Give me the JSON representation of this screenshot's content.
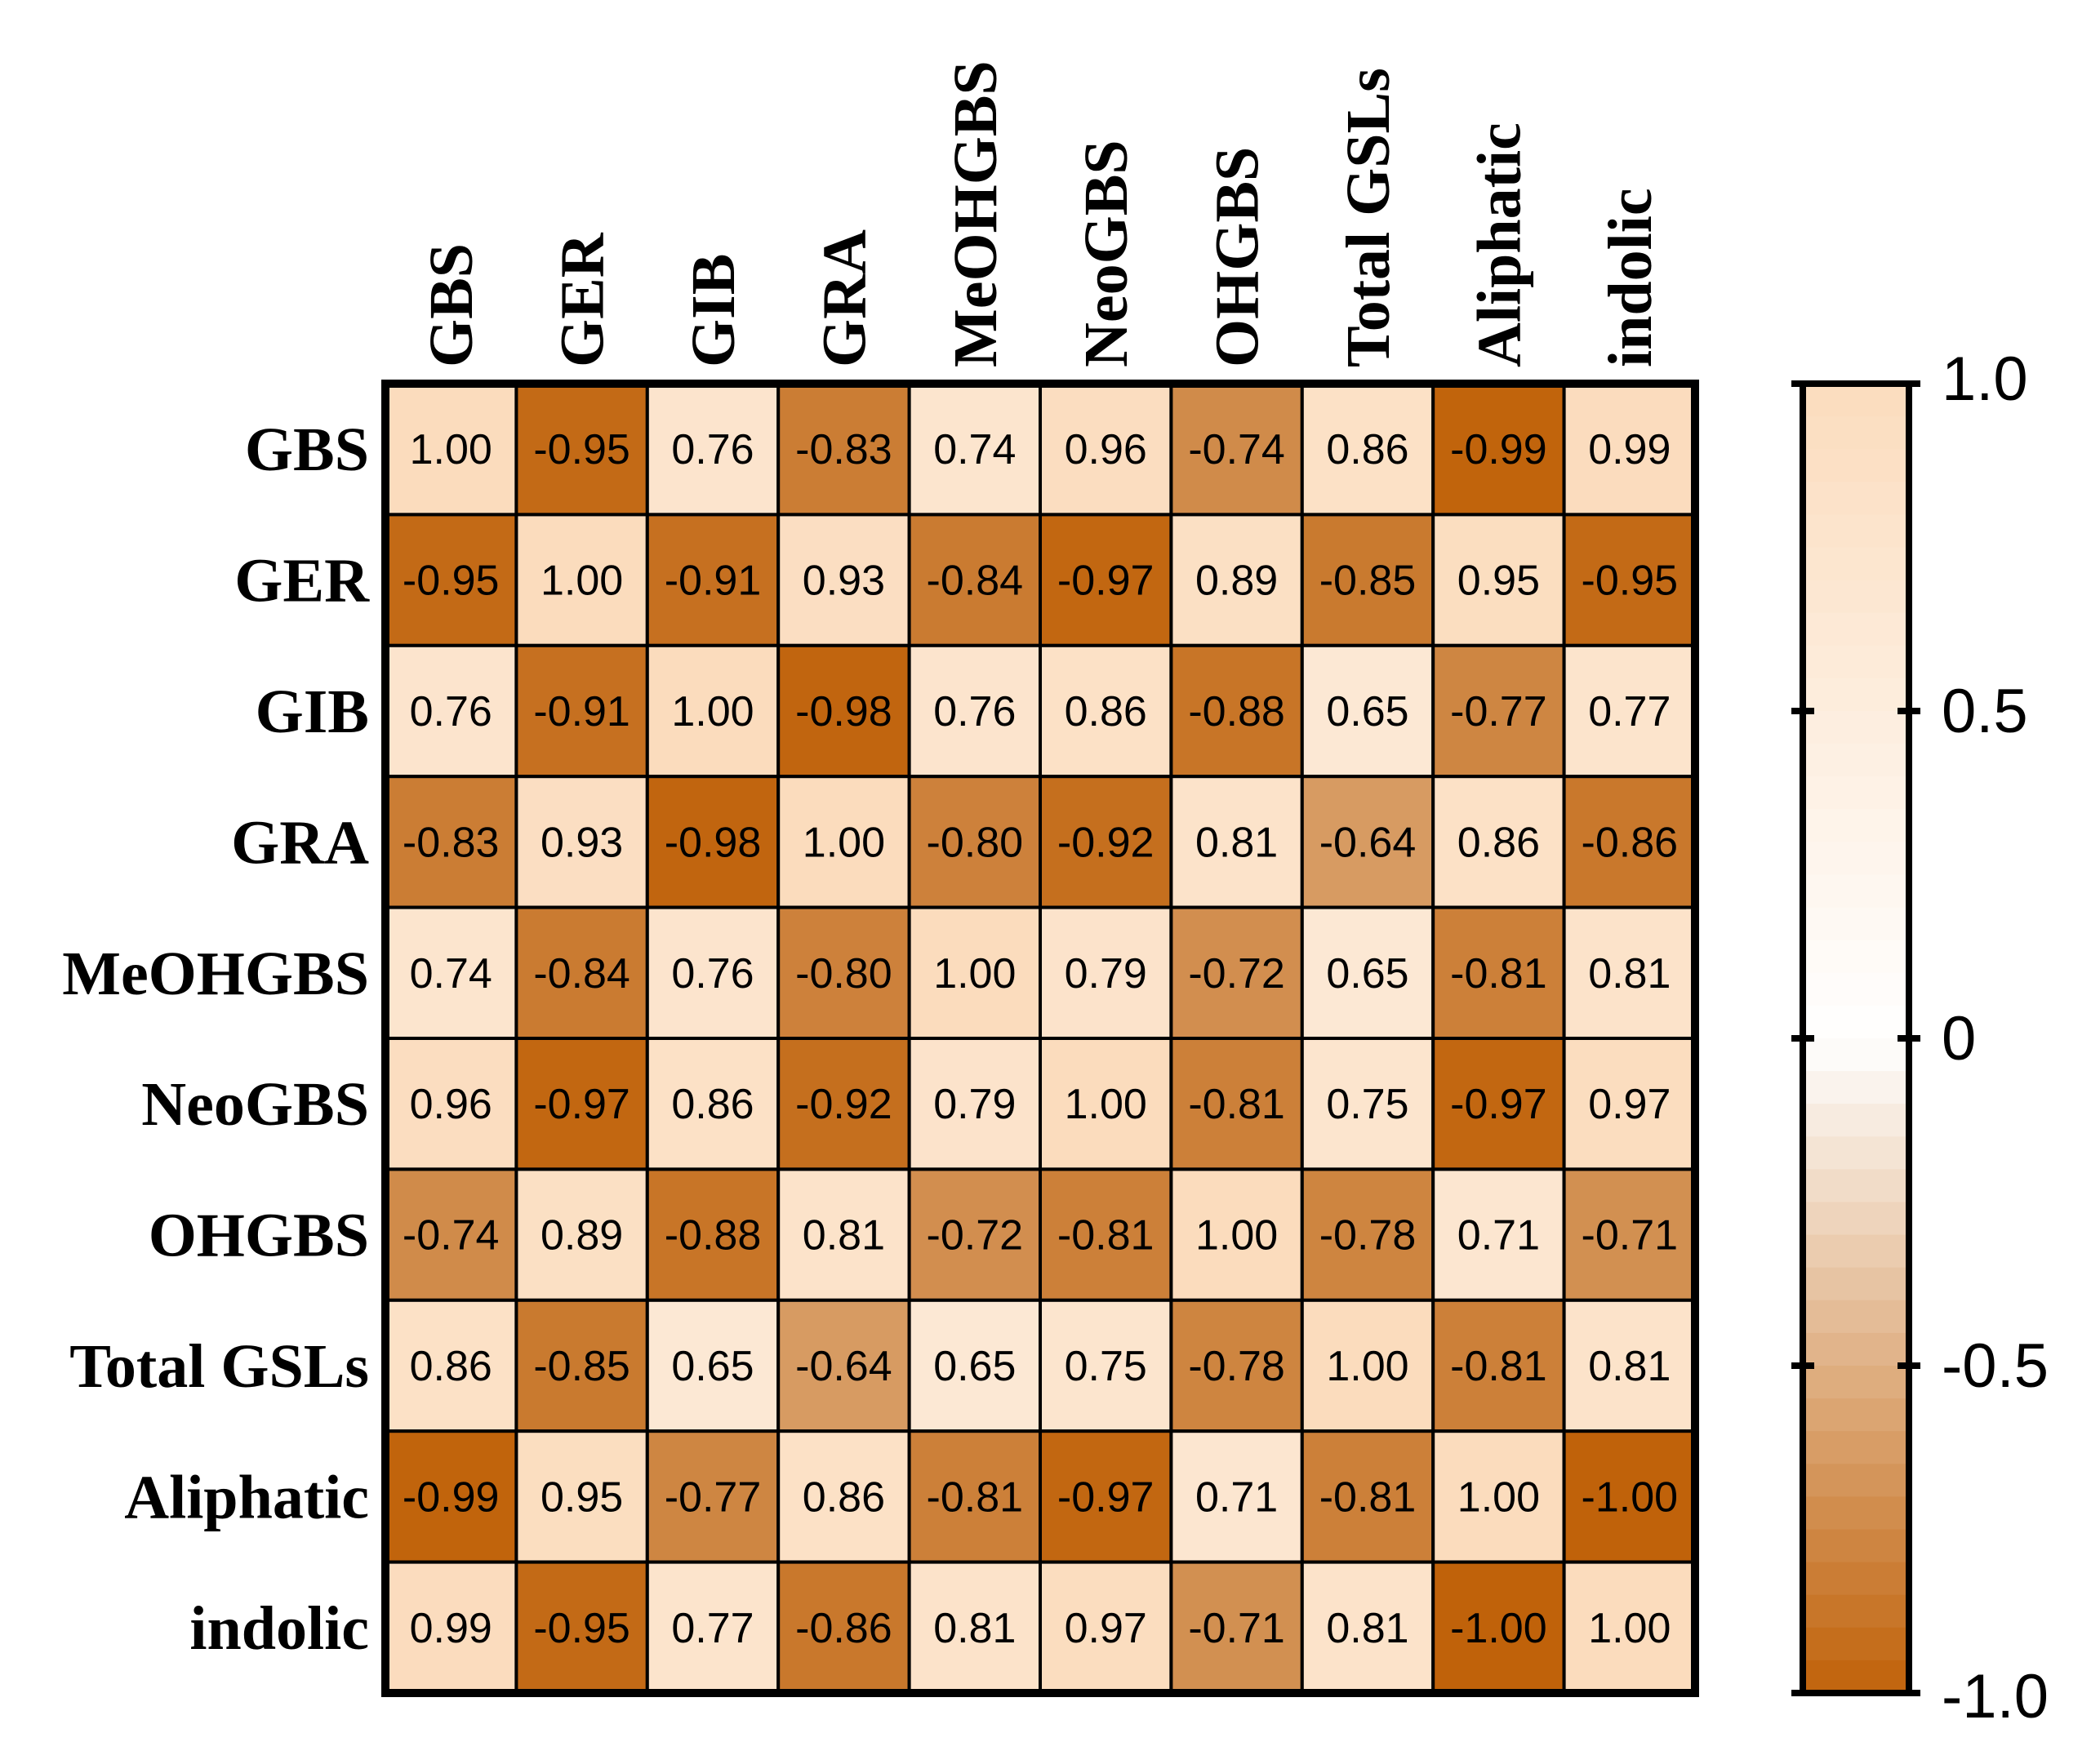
{
  "chart_data": {
    "type": "heatmap",
    "title": "",
    "xlabel": "",
    "ylabel": "",
    "rows": [
      "GBS",
      "GER",
      "GIB",
      "GRA",
      "MeOHGBS",
      "NeoGBS",
      "OHGBS",
      "Total GSLs",
      "Aliphatic",
      "indolic"
    ],
    "columns": [
      "GBS",
      "GER",
      "GIB",
      "GRA",
      "MeOHGBS",
      "NeoGBS",
      "OHGBS",
      "Total GSLs",
      "Aliphatic",
      "indolic"
    ],
    "values": [
      [
        1.0,
        -0.95,
        0.76,
        -0.83,
        0.74,
        0.96,
        -0.74,
        0.86,
        -0.99,
        0.99
      ],
      [
        -0.95,
        1.0,
        -0.91,
        0.93,
        -0.84,
        -0.97,
        0.89,
        -0.85,
        0.95,
        -0.95
      ],
      [
        0.76,
        -0.91,
        1.0,
        -0.98,
        0.76,
        0.86,
        -0.88,
        0.65,
        -0.77,
        0.77
      ],
      [
        -0.83,
        0.93,
        -0.98,
        1.0,
        -0.8,
        -0.92,
        0.81,
        -0.64,
        0.86,
        -0.86
      ],
      [
        0.74,
        -0.84,
        0.76,
        -0.8,
        1.0,
        0.79,
        -0.72,
        0.65,
        -0.81,
        0.81
      ],
      [
        0.96,
        -0.97,
        0.86,
        -0.92,
        0.79,
        1.0,
        -0.81,
        0.75,
        -0.97,
        0.97
      ],
      [
        -0.74,
        0.89,
        -0.88,
        0.81,
        -0.72,
        -0.81,
        1.0,
        -0.78,
        0.71,
        -0.71
      ],
      [
        0.86,
        -0.85,
        0.65,
        -0.64,
        0.65,
        0.75,
        -0.78,
        1.0,
        -0.81,
        0.81
      ],
      [
        -0.99,
        0.95,
        -0.77,
        0.86,
        -0.81,
        -0.97,
        0.71,
        -0.81,
        1.0,
        -1.0
      ],
      [
        0.99,
        -0.95,
        0.77,
        -0.86,
        0.81,
        0.97,
        -0.71,
        0.81,
        -1.0,
        1.0
      ]
    ],
    "value_labels": [
      [
        "1.00",
        "-0.95",
        "0.76",
        "-0.83",
        "0.74",
        "0.96",
        "-0.74",
        "0.86",
        "-0.99",
        "0.99"
      ],
      [
        "-0.95",
        "1.00",
        "-0.91",
        "0.93",
        "-0.84",
        "-0.97",
        "0.89",
        "-0.85",
        "0.95",
        "-0.95"
      ],
      [
        "0.76",
        "-0.91",
        "1.00",
        "-0.98",
        "0.76",
        "0.86",
        "-0.88",
        "0.65",
        "-0.77",
        "0.77"
      ],
      [
        "-0.83",
        "0.93",
        "-0.98",
        "1.00",
        "-0.80",
        "-0.92",
        "0.81",
        "-0.64",
        "0.86",
        "-0.86"
      ],
      [
        "0.74",
        "-0.84",
        "0.76",
        "-0.80",
        "1.00",
        "0.79",
        "-0.72",
        "0.65",
        "-0.81",
        "0.81"
      ],
      [
        "0.96",
        "-0.97",
        "0.86",
        "-0.92",
        "0.79",
        "1.00",
        "-0.81",
        "0.75",
        "-0.97",
        "0.97"
      ],
      [
        "-0.74",
        "0.89",
        "-0.88",
        "0.81",
        "-0.72",
        "-0.81",
        "1.00",
        "-0.78",
        "0.71",
        "-0.71"
      ],
      [
        "0.86",
        "-0.85",
        "0.65",
        "-0.64",
        "0.65",
        "0.75",
        "-0.78",
        "1.00",
        "-0.81",
        "0.81"
      ],
      [
        "-0.99",
        "0.95",
        "-0.77",
        "0.86",
        "-0.81",
        "-0.97",
        "0.71",
        "-0.81",
        "1.00",
        "-1.00"
      ],
      [
        "0.99",
        "-0.95",
        "0.77",
        "-0.86",
        "0.81",
        "0.97",
        "-0.71",
        "0.81",
        "-1.00",
        "1.00"
      ]
    ],
    "colorbar": {
      "range": [
        -1.0,
        1.0
      ],
      "ticks": [
        1.0,
        0.5,
        0,
        -0.5,
        -1.0
      ],
      "tick_labels": [
        "1.0",
        "0.5",
        "0",
        "-0.5",
        "-1.0"
      ],
      "low_color": "#c0620a",
      "mid_color": "#ffffff",
      "high_color": "#fbdcbd",
      "placement": "right"
    }
  }
}
